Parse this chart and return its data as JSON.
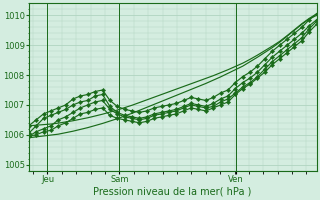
{
  "xlabel": "Pression niveau de la mer( hPa )",
  "background_color": "#d4ede0",
  "grid_color": "#b0d4c0",
  "line_color": "#1a6b1a",
  "ylim": [
    1004.8,
    1010.4
  ],
  "day_labels": [
    "Jeu",
    "Sam",
    "Ven"
  ],
  "day_positions": [
    0.065,
    0.315,
    0.72
  ],
  "series": {
    "smooth_low": [
      1005.9,
      1005.93,
      1005.96,
      1005.99,
      1006.02,
      1006.07,
      1006.12,
      1006.18,
      1006.24,
      1006.31,
      1006.38,
      1006.46,
      1006.54,
      1006.63,
      1006.72,
      1006.82,
      1006.92,
      1007.02,
      1007.12,
      1007.22,
      1007.32,
      1007.42,
      1007.52,
      1007.62,
      1007.72,
      1007.83,
      1007.94,
      1008.06,
      1008.18,
      1008.3,
      1008.45,
      1008.6,
      1008.76,
      1008.92,
      1009.1,
      1009.3,
      1009.5,
      1009.7,
      1009.88,
      1010.0
    ],
    "smooth_high": [
      1006.3,
      1006.32,
      1006.34,
      1006.36,
      1006.39,
      1006.43,
      1006.47,
      1006.52,
      1006.57,
      1006.63,
      1006.69,
      1006.76,
      1006.83,
      1006.91,
      1006.99,
      1007.08,
      1007.17,
      1007.26,
      1007.35,
      1007.44,
      1007.53,
      1007.62,
      1007.71,
      1007.8,
      1007.89,
      1007.98,
      1008.08,
      1008.18,
      1008.29,
      1008.4,
      1008.53,
      1008.67,
      1008.82,
      1008.97,
      1009.13,
      1009.32,
      1009.52,
      1009.72,
      1009.9,
      1010.05
    ],
    "zigzag1": [
      1006.05,
      1006.3,
      1006.55,
      1006.65,
      1006.75,
      1006.85,
      1007.0,
      1007.1,
      1007.15,
      1007.3,
      1007.35,
      1006.95,
      1006.75,
      1006.65,
      1006.6,
      1006.55,
      1006.6,
      1006.7,
      1006.75,
      1006.8,
      1006.85,
      1006.95,
      1007.05,
      1007.0,
      1006.95,
      1007.05,
      1007.2,
      1007.3,
      1007.55,
      1007.75,
      1007.9,
      1008.1,
      1008.35,
      1008.6,
      1008.8,
      1009.0,
      1009.2,
      1009.4,
      1009.65,
      1009.85
    ],
    "zigzag2": [
      1005.95,
      1006.1,
      1006.2,
      1006.3,
      1006.5,
      1006.6,
      1006.75,
      1006.9,
      1007.0,
      1007.1,
      1007.15,
      1006.85,
      1006.7,
      1006.6,
      1006.55,
      1006.5,
      1006.55,
      1006.65,
      1006.7,
      1006.75,
      1006.8,
      1006.9,
      1007.0,
      1006.95,
      1006.9,
      1006.95,
      1007.1,
      1007.2,
      1007.4,
      1007.6,
      1007.75,
      1007.95,
      1008.2,
      1008.45,
      1008.65,
      1008.85,
      1009.05,
      1009.25,
      1009.55,
      1009.8
    ],
    "zigzag3": [
      1005.95,
      1006.0,
      1006.1,
      1006.15,
      1006.3,
      1006.4,
      1006.55,
      1006.7,
      1006.75,
      1006.85,
      1006.9,
      1006.65,
      1006.55,
      1006.5,
      1006.45,
      1006.4,
      1006.45,
      1006.55,
      1006.6,
      1006.65,
      1006.7,
      1006.8,
      1006.9,
      1006.85,
      1006.8,
      1006.9,
      1007.0,
      1007.1,
      1007.35,
      1007.55,
      1007.7,
      1007.9,
      1008.1,
      1008.35,
      1008.55,
      1008.75,
      1008.95,
      1009.15,
      1009.45,
      1009.7
    ],
    "zigzag_top": [
      1006.3,
      1006.5,
      1006.7,
      1006.8,
      1006.9,
      1007.0,
      1007.2,
      1007.3,
      1007.35,
      1007.45,
      1007.5,
      1007.15,
      1006.95,
      1006.85,
      1006.8,
      1006.75,
      1006.8,
      1006.9,
      1006.95,
      1007.0,
      1007.05,
      1007.15,
      1007.25,
      1007.2,
      1007.15,
      1007.25,
      1007.4,
      1007.5,
      1007.75,
      1007.95,
      1008.1,
      1008.3,
      1008.55,
      1008.8,
      1009.0,
      1009.2,
      1009.4,
      1009.6,
      1009.85,
      1010.05
    ]
  },
  "marker_style": "D",
  "marker_size": 2.2,
  "line_width": 0.85
}
